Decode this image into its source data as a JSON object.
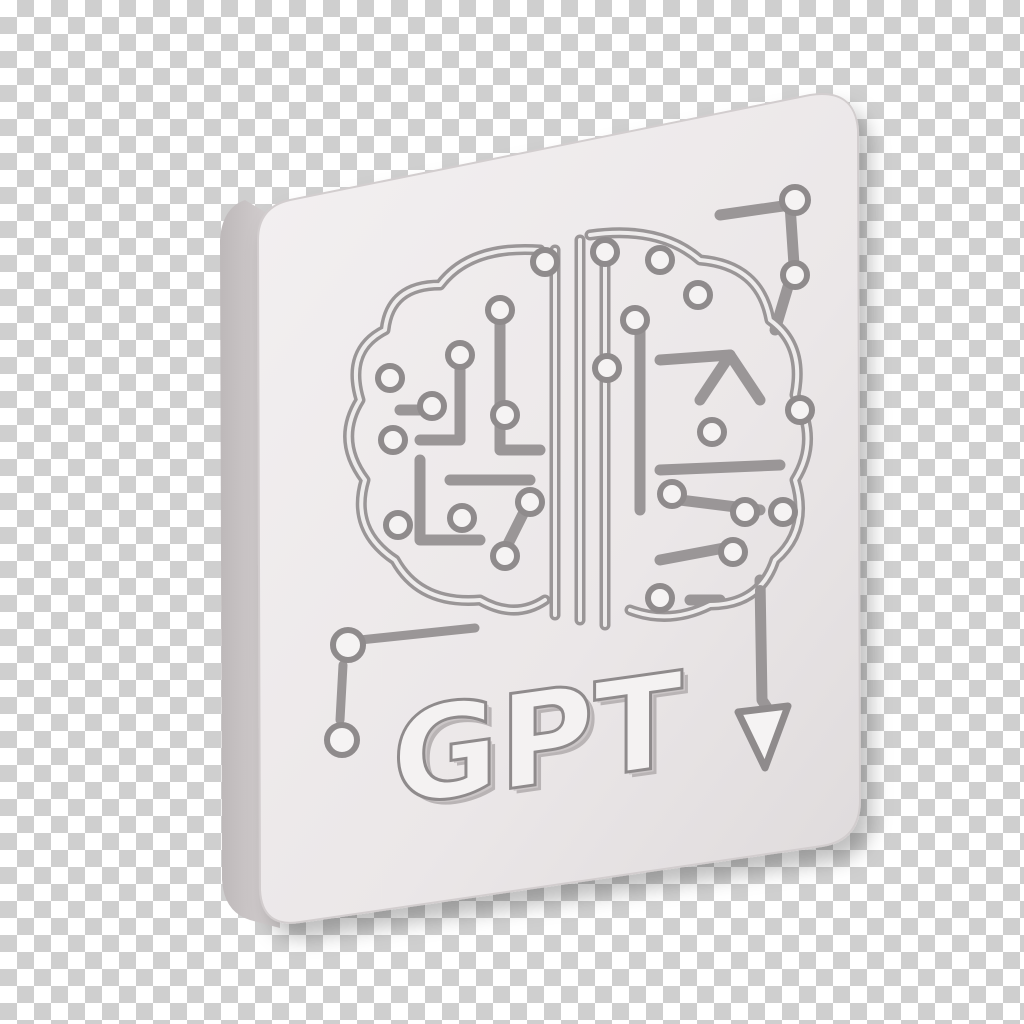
{
  "logo": {
    "text": "GPT",
    "icon": "brain-circuit-icon"
  },
  "colors": {
    "tile_face": "#ece8e9",
    "tile_side": "#cfcacb",
    "relief_stroke": "#9c9899",
    "relief_light": "#f9f7f7",
    "checker": "#cfcfcf"
  }
}
